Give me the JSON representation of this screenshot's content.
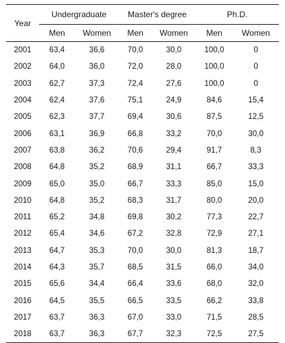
{
  "header": {
    "year": "Year",
    "groups": [
      "Undergraduate",
      "Master's degree",
      "Ph.D."
    ],
    "subheaders": [
      "Men",
      "Women",
      "Men",
      "Women",
      "Men",
      "Women"
    ]
  },
  "rows": [
    [
      "2001",
      "63,4",
      "36,6",
      "70,0",
      "30,0",
      "100,0",
      "0"
    ],
    [
      "2002",
      "64,0",
      "36,0",
      "72,0",
      "28,0",
      "100,0",
      "0"
    ],
    [
      "2003",
      "62,7",
      "37,3",
      "72,4",
      "27,6",
      "100,0",
      "0"
    ],
    [
      "2004",
      "62,4",
      "37,6",
      "75,1",
      "24,9",
      "84,6",
      "15,4"
    ],
    [
      "2005",
      "62,3",
      "37,7",
      "69,4",
      "30,6",
      "87,5",
      "12,5"
    ],
    [
      "2006",
      "63,1",
      "36,9",
      "66,8",
      "33,2",
      "70,0",
      "30,0"
    ],
    [
      "2007",
      "63,8",
      "36,2",
      "70,6",
      "29,4",
      "91,7",
      "8,3"
    ],
    [
      "2008",
      "64,8",
      "35,2",
      "68,9",
      "31,1",
      "66,7",
      "33,3"
    ],
    [
      "2009",
      "65,0",
      "35,0",
      "66,7",
      "33,3",
      "85,0",
      "15,0"
    ],
    [
      "2010",
      "64,8",
      "35,2",
      "68,3",
      "31,7",
      "80,0",
      "20,0"
    ],
    [
      "2011",
      "65,2",
      "34,8",
      "69,8",
      "30,2",
      "77,3",
      "22,7"
    ],
    [
      "2012",
      "65,4",
      "34,6",
      "67,2",
      "32,8",
      "72,9",
      "27,1"
    ],
    [
      "2013",
      "64,7",
      "35,3",
      "70,0",
      "30,0",
      "81,3",
      "18,7"
    ],
    [
      "2014",
      "64,3",
      "35,7",
      "68,5",
      "31,5",
      "66,0",
      "34,0"
    ],
    [
      "2015",
      "65,6",
      "34,4",
      "66,4",
      "33,6",
      "68,0",
      "32,0"
    ],
    [
      "2016",
      "64,5",
      "35,5",
      "66,5",
      "33,5",
      "66,2",
      "33,8"
    ],
    [
      "2017",
      "63,7",
      "36,3",
      "67,0",
      "33,0",
      "71,5",
      "28,5"
    ],
    [
      "2018",
      "63,7",
      "36,3",
      "67,7",
      "32,3",
      "72,5",
      "27,5"
    ]
  ]
}
